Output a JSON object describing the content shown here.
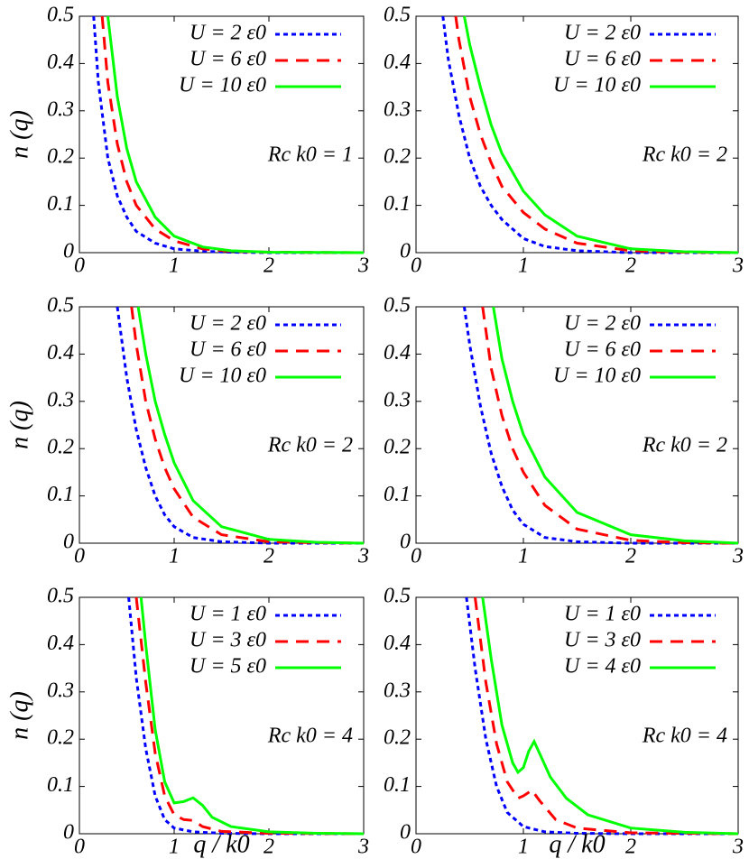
{
  "chart_data": [
    {
      "type": "line",
      "ylabel": "n (q)",
      "annotation": "Rc k0 = 1",
      "xlim": [
        0,
        3
      ],
      "ylim": [
        0,
        0.5
      ],
      "xticks": [
        0,
        1,
        2,
        3
      ],
      "yticks": [
        0,
        0.1,
        0.2,
        0.3,
        0.4,
        0.5
      ],
      "series": [
        {
          "name": "U = 2 ε0",
          "color": "#0000ff",
          "dash": "dotted",
          "x": [
            0.15,
            0.2,
            0.3,
            0.4,
            0.5,
            0.6,
            0.8,
            1.0,
            1.3,
            1.6,
            2,
            3
          ],
          "values": [
            0.5,
            0.36,
            0.2,
            0.12,
            0.075,
            0.045,
            0.02,
            0.008,
            0.003,
            0.001,
            0,
            0
          ]
        },
        {
          "name": "U = 6 ε0",
          "color": "#ff0000",
          "dash": "dashed",
          "x": [
            0.24,
            0.3,
            0.4,
            0.5,
            0.6,
            0.8,
            1.0,
            1.3,
            1.6,
            2,
            3
          ],
          "values": [
            0.5,
            0.36,
            0.23,
            0.15,
            0.1,
            0.05,
            0.025,
            0.008,
            0.003,
            0.001,
            0
          ]
        },
        {
          "name": "U = 10 ε0",
          "color": "#00ff00",
          "dash": "solid",
          "x": [
            0.3,
            0.4,
            0.5,
            0.6,
            0.8,
            1.0,
            1.3,
            1.6,
            2,
            3
          ],
          "values": [
            0.5,
            0.33,
            0.22,
            0.15,
            0.075,
            0.035,
            0.012,
            0.004,
            0.001,
            0
          ]
        }
      ]
    },
    {
      "type": "line",
      "annotation": "Rc k0 = 2",
      "xlim": [
        0,
        3
      ],
      "ylim": [
        0,
        0.5
      ],
      "xticks": [
        0,
        1,
        2,
        3
      ],
      "yticks": [
        0,
        0.1,
        0.2,
        0.3,
        0.4,
        0.5
      ],
      "series": [
        {
          "name": "U = 2 ε0",
          "color": "#0000ff",
          "dash": "dotted",
          "x": [
            0.25,
            0.3,
            0.4,
            0.5,
            0.6,
            0.7,
            0.8,
            1.0,
            1.2,
            1.5,
            2,
            3
          ],
          "values": [
            0.5,
            0.41,
            0.29,
            0.2,
            0.14,
            0.1,
            0.07,
            0.03,
            0.013,
            0.004,
            0,
            0
          ]
        },
        {
          "name": "U = 6 ε0",
          "color": "#ff0000",
          "dash": "dashed",
          "x": [
            0.37,
            0.4,
            0.5,
            0.6,
            0.7,
            0.8,
            1.0,
            1.2,
            1.5,
            2,
            2.5,
            3
          ],
          "values": [
            0.5,
            0.45,
            0.33,
            0.25,
            0.19,
            0.14,
            0.085,
            0.05,
            0.02,
            0.004,
            0.001,
            0
          ]
        },
        {
          "name": "U = 10 ε0",
          "color": "#00ff00",
          "dash": "solid",
          "x": [
            0.45,
            0.5,
            0.6,
            0.7,
            0.8,
            1.0,
            1.2,
            1.5,
            2,
            2.5,
            3
          ],
          "values": [
            0.5,
            0.44,
            0.35,
            0.27,
            0.21,
            0.13,
            0.08,
            0.035,
            0.008,
            0.002,
            0
          ]
        }
      ]
    },
    {
      "type": "line",
      "ylabel": "n (q)",
      "annotation": "Rc k0 = 2",
      "xlim": [
        0,
        3
      ],
      "ylim": [
        0,
        0.5
      ],
      "xticks": [
        0,
        1,
        2,
        3
      ],
      "yticks": [
        0,
        0.1,
        0.2,
        0.3,
        0.4,
        0.5
      ],
      "series": [
        {
          "name": "U = 2 ε0",
          "color": "#0000ff",
          "dash": "dotted",
          "x": [
            0.4,
            0.5,
            0.6,
            0.7,
            0.8,
            0.9,
            1.0,
            1.2,
            1.5,
            2,
            3
          ],
          "values": [
            0.5,
            0.35,
            0.24,
            0.16,
            0.1,
            0.06,
            0.035,
            0.012,
            0.003,
            0,
            0
          ]
        },
        {
          "name": "U = 6 ε0",
          "color": "#ff0000",
          "dash": "dashed",
          "x": [
            0.55,
            0.6,
            0.7,
            0.8,
            0.9,
            1.0,
            1.2,
            1.5,
            2,
            2.5,
            3
          ],
          "values": [
            0.5,
            0.42,
            0.3,
            0.22,
            0.16,
            0.115,
            0.055,
            0.018,
            0.003,
            0.001,
            0
          ]
        },
        {
          "name": "U = 10 ε0",
          "color": "#00ff00",
          "dash": "solid",
          "x": [
            0.62,
            0.7,
            0.8,
            0.9,
            1.0,
            1.2,
            1.5,
            2,
            2.5,
            3
          ],
          "values": [
            0.5,
            0.4,
            0.3,
            0.23,
            0.17,
            0.09,
            0.035,
            0.008,
            0.002,
            0
          ]
        }
      ]
    },
    {
      "type": "line",
      "annotation": "Rc k0 = 2",
      "xlim": [
        0,
        3
      ],
      "ylim": [
        0,
        0.5
      ],
      "xticks": [
        0,
        1,
        2,
        3
      ],
      "yticks": [
        0,
        0.1,
        0.2,
        0.3,
        0.4,
        0.5
      ],
      "series": [
        {
          "name": "U = 2 ε0",
          "color": "#0000ff",
          "dash": "dotted",
          "x": [
            0.45,
            0.5,
            0.6,
            0.7,
            0.8,
            0.9,
            1.0,
            1.2,
            1.5,
            2,
            3
          ],
          "values": [
            0.5,
            0.42,
            0.29,
            0.19,
            0.12,
            0.07,
            0.04,
            0.012,
            0.003,
            0,
            0
          ]
        },
        {
          "name": "U = 6 ε0",
          "color": "#ff0000",
          "dash": "dashed",
          "x": [
            0.62,
            0.7,
            0.8,
            0.9,
            1.0,
            1.2,
            1.5,
            2,
            2.5,
            3
          ],
          "values": [
            0.5,
            0.37,
            0.27,
            0.2,
            0.15,
            0.08,
            0.03,
            0.006,
            0.001,
            0
          ]
        },
        {
          "name": "U = 10 ε0",
          "color": "#00ff00",
          "dash": "solid",
          "x": [
            0.72,
            0.8,
            0.9,
            1.0,
            1.2,
            1.5,
            2,
            2.5,
            3
          ],
          "values": [
            0.5,
            0.39,
            0.3,
            0.23,
            0.14,
            0.065,
            0.018,
            0.005,
            0
          ]
        }
      ]
    },
    {
      "type": "line",
      "ylabel": "n (q)",
      "xlabel": "q / k0",
      "annotation": "Rc k0 = 4",
      "xlim": [
        0,
        3
      ],
      "ylim": [
        0,
        0.5
      ],
      "xticks": [
        0,
        1,
        2,
        3
      ],
      "yticks": [
        0,
        0.1,
        0.2,
        0.3,
        0.4,
        0.5
      ],
      "series": [
        {
          "name": "U = 1 ε0",
          "color": "#0000ff",
          "dash": "dotted",
          "x": [
            0.52,
            0.6,
            0.7,
            0.8,
            0.9,
            1.0,
            1.2,
            1.5,
            2,
            3
          ],
          "values": [
            0.5,
            0.33,
            0.18,
            0.08,
            0.03,
            0.012,
            0.004,
            0.001,
            0,
            0
          ]
        },
        {
          "name": "U = 3 ε0",
          "color": "#ff0000",
          "dash": "dashed",
          "x": [
            0.6,
            0.7,
            0.8,
            0.9,
            1.0,
            1.1,
            1.2,
            1.3,
            1.5,
            2,
            3
          ],
          "values": [
            0.5,
            0.32,
            0.17,
            0.08,
            0.04,
            0.03,
            0.028,
            0.015,
            0.005,
            0.001,
            0
          ]
        },
        {
          "name": "U = 5 ε0",
          "color": "#00ff00",
          "dash": "solid",
          "x": [
            0.65,
            0.7,
            0.8,
            0.9,
            1.0,
            1.1,
            1.2,
            1.3,
            1.4,
            1.6,
            2,
            2.5,
            3
          ],
          "values": [
            0.5,
            0.4,
            0.22,
            0.11,
            0.065,
            0.068,
            0.076,
            0.06,
            0.035,
            0.015,
            0.004,
            0.001,
            0
          ]
        }
      ]
    },
    {
      "type": "line",
      "xlabel": "q / k0",
      "annotation": "Rc k0 = 4",
      "xlim": [
        0,
        3
      ],
      "ylim": [
        0,
        0.5
      ],
      "xticks": [
        0,
        1,
        2,
        3
      ],
      "yticks": [
        0,
        0.1,
        0.2,
        0.3,
        0.4,
        0.5
      ],
      "series": [
        {
          "name": "U = 1 ε0",
          "color": "#0000ff",
          "dash": "dotted",
          "x": [
            0.47,
            0.55,
            0.65,
            0.75,
            0.85,
            1.0,
            1.2,
            1.5,
            2,
            3
          ],
          "values": [
            0.5,
            0.35,
            0.2,
            0.1,
            0.045,
            0.015,
            0.004,
            0.001,
            0,
            0
          ]
        },
        {
          "name": "U = 3 ε0",
          "color": "#ff0000",
          "dash": "dashed",
          "x": [
            0.55,
            0.65,
            0.75,
            0.85,
            0.95,
            1.0,
            1.08,
            1.15,
            1.3,
            1.5,
            2,
            3
          ],
          "values": [
            0.5,
            0.32,
            0.19,
            0.11,
            0.075,
            0.08,
            0.092,
            0.07,
            0.03,
            0.012,
            0.002,
            0
          ]
        },
        {
          "name": "U = 4 ε0",
          "color": "#00ff00",
          "dash": "solid",
          "x": [
            0.62,
            0.7,
            0.8,
            0.9,
            0.95,
            1.0,
            1.05,
            1.1,
            1.15,
            1.25,
            1.4,
            1.6,
            2,
            2.5,
            3
          ],
          "values": [
            0.5,
            0.37,
            0.23,
            0.15,
            0.13,
            0.14,
            0.175,
            0.195,
            0.17,
            0.12,
            0.075,
            0.04,
            0.012,
            0.003,
            0
          ]
        }
      ]
    }
  ]
}
